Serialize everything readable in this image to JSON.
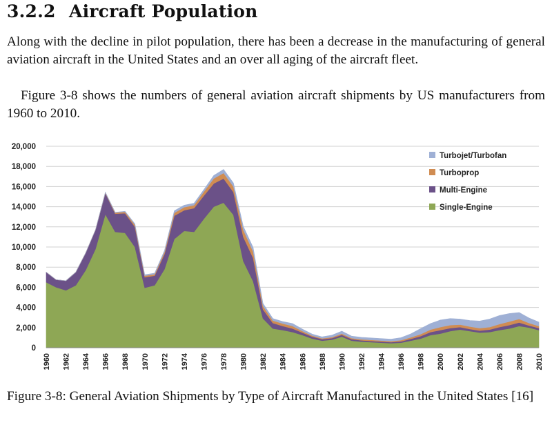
{
  "section": {
    "number": "3.2.2",
    "title": "Aircraft Population"
  },
  "paragraphs": [
    "Along with the decline in pilot population, there has been a decrease in the manufacturing of general aviation aircraft in the United States and an over all aging of the aircraft fleet.",
    "Figure 3-8 shows the numbers of general aviation aircraft shipments by US manufacturers from 1960 to 2010."
  ],
  "caption": "Figure 3-8: General Aviation Shipments by Type of Aircraft Manufactured in the United States [16]",
  "chart_data": {
    "type": "area",
    "stacked": true,
    "x": [
      1960,
      1961,
      1962,
      1963,
      1964,
      1965,
      1966,
      1967,
      1968,
      1969,
      1970,
      1971,
      1972,
      1973,
      1974,
      1975,
      1976,
      1977,
      1978,
      1979,
      1980,
      1981,
      1982,
      1983,
      1984,
      1985,
      1986,
      1987,
      1988,
      1989,
      1990,
      1991,
      1992,
      1993,
      1994,
      1995,
      1996,
      1997,
      1998,
      1999,
      2000,
      2001,
      2002,
      2003,
      2004,
      2005,
      2006,
      2007,
      2008,
      2009,
      2010
    ],
    "ylim": [
      0,
      20000
    ],
    "yticks": [
      0,
      2000,
      4000,
      6000,
      8000,
      10000,
      12000,
      14000,
      16000,
      18000,
      20000
    ],
    "ytick_labels": [
      "0",
      "2,000",
      "4,000",
      "6,000",
      "8,000",
      "10,000",
      "12,000",
      "14,000",
      "16,000",
      "18,000",
      "20,000"
    ],
    "xtick_labels": [
      "1960",
      "1962",
      "1964",
      "1966",
      "1968",
      "1970",
      "1972",
      "1974",
      "1976",
      "1978",
      "1980",
      "1982",
      "1984",
      "1986",
      "1988",
      "1990",
      "1992",
      "1994",
      "1996",
      "1998",
      "2000",
      "2002",
      "2004",
      "2006",
      "2008",
      "2010"
    ],
    "grid": true,
    "legend_position": "top-right",
    "series": [
      {
        "name": "Single-Engine",
        "color": "#8ea755",
        "values": [
          6500,
          6000,
          5700,
          6200,
          7700,
          9800,
          13250,
          11500,
          11400,
          10000,
          5950,
          6200,
          7800,
          10800,
          11600,
          11500,
          12800,
          14000,
          14400,
          13200,
          8600,
          6600,
          2900,
          1900,
          1750,
          1550,
          1250,
          900,
          700,
          800,
          1100,
          700,
          600,
          550,
          500,
          450,
          500,
          700,
          900,
          1250,
          1400,
          1650,
          1800,
          1650,
          1500,
          1550,
          1750,
          1900,
          2150,
          2000,
          1750
        ]
      },
      {
        "name": "Multi-Engine",
        "color": "#6b5188",
        "values": [
          1000,
          750,
          950,
          1300,
          1700,
          1900,
          2100,
          1800,
          1950,
          2000,
          1050,
          950,
          1500,
          2300,
          2050,
          2350,
          2300,
          2300,
          2400,
          2250,
          2400,
          2300,
          900,
          550,
          400,
          350,
          250,
          200,
          150,
          150,
          180,
          150,
          130,
          120,
          110,
          100,
          130,
          180,
          250,
          300,
          350,
          300,
          250,
          200,
          200,
          250,
          300,
          350,
          350,
          200,
          200
        ]
      },
      {
        "name": "Turboprop",
        "color": "#d08c52",
        "values": [
          0,
          0,
          0,
          0,
          0,
          0,
          50,
          100,
          150,
          200,
          150,
          150,
          200,
          300,
          300,
          300,
          400,
          500,
          550,
          550,
          700,
          650,
          350,
          250,
          250,
          250,
          150,
          100,
          80,
          100,
          120,
          100,
          100,
          100,
          100,
          100,
          120,
          150,
          200,
          250,
          300,
          300,
          250,
          250,
          250,
          250,
          300,
          350,
          350,
          250,
          200
        ]
      },
      {
        "name": "Turbojet/Turbofan",
        "color": "#9fb0d5",
        "values": [
          0,
          0,
          0,
          0,
          0,
          0,
          50,
          50,
          50,
          100,
          100,
          100,
          150,
          200,
          200,
          200,
          200,
          300,
          350,
          350,
          350,
          400,
          250,
          200,
          200,
          250,
          200,
          150,
          150,
          200,
          250,
          200,
          200,
          200,
          200,
          200,
          250,
          350,
          550,
          600,
          700,
          650,
          550,
          600,
          700,
          800,
          850,
          800,
          650,
          500,
          400
        ]
      }
    ]
  }
}
